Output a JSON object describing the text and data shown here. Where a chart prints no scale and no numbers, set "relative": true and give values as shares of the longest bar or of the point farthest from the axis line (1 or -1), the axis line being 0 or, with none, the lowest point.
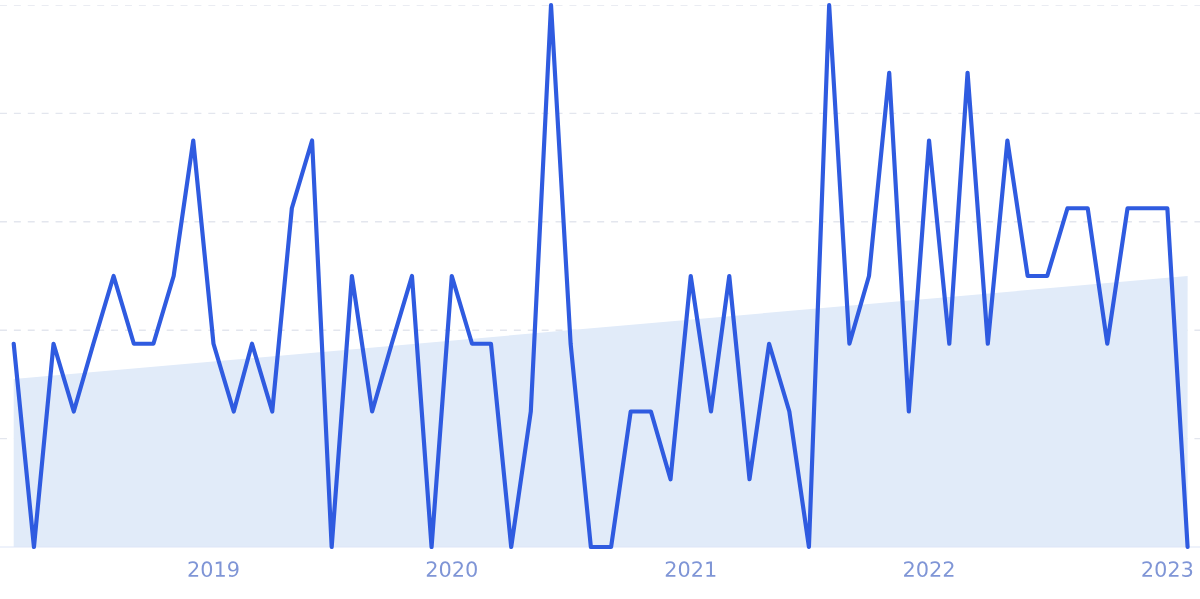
{
  "chart_data": {
    "type": "line",
    "relative": true,
    "grid": "y",
    "legend": false,
    "marker": "none",
    "line_style": "solid",
    "xlim": [
      "2018-02-08",
      "2023-02-20"
    ],
    "xticks": [
      {
        "value": "2019-01",
        "label": "2019"
      },
      {
        "value": "2020-01",
        "label": "2020"
      },
      {
        "value": "2021-01",
        "label": "2021"
      },
      {
        "value": "2022-01",
        "label": "2022"
      },
      {
        "value": "2023-01",
        "label": "2023"
      }
    ],
    "series": [
      {
        "type": "area",
        "color": "#e1ebf9",
        "x": [
          "2018-03",
          "2023-02"
        ],
        "values": [
          0.31,
          0.5
        ]
      },
      {
        "color": "#2f5be0",
        "x": [
          "2018-03",
          "2018-04",
          "2018-05",
          "2018-06",
          "2018-07",
          "2018-08",
          "2018-09",
          "2018-10",
          "2018-11",
          "2018-12",
          "2019-01",
          "2019-02",
          "2019-03",
          "2019-04",
          "2019-05",
          "2019-06",
          "2019-07",
          "2019-08",
          "2019-09",
          "2019-10",
          "2019-11",
          "2019-12",
          "2020-01",
          "2020-02",
          "2020-03",
          "2020-04",
          "2020-05",
          "2020-06",
          "2020-07",
          "2020-08",
          "2020-09",
          "2020-10",
          "2020-11",
          "2020-12",
          "2021-01",
          "2021-02",
          "2021-03",
          "2021-04",
          "2021-05",
          "2021-06",
          "2021-07",
          "2021-08",
          "2021-09",
          "2021-10",
          "2021-11",
          "2021-12",
          "2022-01",
          "2022-02",
          "2022-03",
          "2022-04",
          "2022-05",
          "2022-06",
          "2022-07",
          "2022-08",
          "2022-09",
          "2022-10",
          "2022-11",
          "2022-12",
          "2023-01",
          "2023-02"
        ],
        "values": [
          0.375,
          0,
          0.375,
          0.25,
          0.375,
          0.5,
          0.375,
          0.375,
          0.5,
          0.75,
          0.375,
          0.25,
          0.375,
          0.25,
          0.625,
          0.75,
          0,
          0.5,
          0.25,
          0.375,
          0.5,
          0,
          0.5,
          0.375,
          0.375,
          0,
          0.25,
          1,
          0.375,
          0,
          0,
          0.25,
          0.25,
          0.125,
          0.5,
          0.25,
          0.5,
          0.125,
          0.375,
          0.25,
          0,
          1,
          0.375,
          0.5,
          0.875,
          0.25,
          0.75,
          0.375,
          0.875,
          0.375,
          0.75,
          0.5,
          0.5,
          0.625,
          0.625,
          0.375,
          0.625,
          0.625,
          0.625,
          0
        ]
      }
    ]
  }
}
